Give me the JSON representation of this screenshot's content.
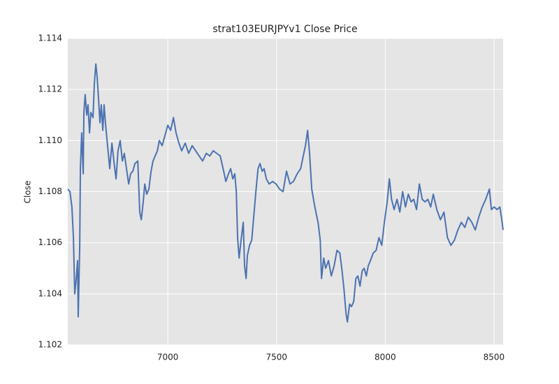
{
  "chart_data": {
    "type": "line",
    "title": "strat103EURJPYv1 Close Price",
    "y_label": "Close",
    "x": [
      6540,
      6550,
      6559,
      6566,
      6572,
      6579,
      6585,
      6588,
      6595,
      6598,
      6604,
      6611,
      6614,
      6620,
      6627,
      6633,
      6640,
      6646,
      6656,
      6662,
      6669,
      6675,
      6681,
      6688,
      6694,
      6701,
      6707,
      6714,
      6723,
      6733,
      6743,
      6752,
      6762,
      6771,
      6781,
      6791,
      6800,
      6810,
      6820,
      6829,
      6839,
      6849,
      6862,
      6871,
      6878,
      6887,
      6894,
      6903,
      6913,
      6923,
      6932,
      6942,
      6952,
      6961,
      6974,
      6987,
      7000,
      7013,
      7026,
      7038,
      7051,
      7064,
      7080,
      7096,
      7112,
      7128,
      7144,
      7160,
      7177,
      7193,
      7209,
      7225,
      7241,
      7257,
      7267,
      7279,
      7289,
      7299,
      7308,
      7315,
      7321,
      7328,
      7337,
      7347,
      7353,
      7360,
      7366,
      7376,
      7386,
      7395,
      7405,
      7415,
      7424,
      7434,
      7443,
      7453,
      7466,
      7482,
      7498,
      7514,
      7530,
      7546,
      7562,
      7578,
      7595,
      7611,
      7623,
      7633,
      7643,
      7652,
      7662,
      7672,
      7681,
      7691,
      7701,
      7707,
      7717,
      7726,
      7739,
      7752,
      7765,
      7778,
      7791,
      7800,
      7810,
      7820,
      7826,
      7836,
      7845,
      7855,
      7865,
      7874,
      7884,
      7894,
      7903,
      7913,
      7922,
      7932,
      7945,
      7958,
      7971,
      7984,
      7996,
      8009,
      8019,
      8029,
      8041,
      8054,
      8067,
      8080,
      8093,
      8106,
      8119,
      8131,
      8144,
      8157,
      8170,
      8183,
      8196,
      8209,
      8221,
      8237,
      8254,
      8270,
      8286,
      8302,
      8318,
      8334,
      8350,
      8366,
      8382,
      8398,
      8414,
      8430,
      8446,
      8462,
      8479,
      8488,
      8501,
      8514,
      8527,
      8536,
      8542
    ],
    "series": [
      {
        "name": "Close",
        "color": "#4c72b0",
        "values": [
          1.1081,
          1.108,
          1.1074,
          1.1062,
          1.104,
          1.1046,
          1.1053,
          1.1031,
          1.1059,
          1.1089,
          1.1103,
          1.1087,
          1.1111,
          1.1118,
          1.111,
          1.1114,
          1.1103,
          1.1111,
          1.1109,
          1.1122,
          1.113,
          1.1125,
          1.1117,
          1.1107,
          1.1114,
          1.1104,
          1.1114,
          1.1106,
          1.1098,
          1.1089,
          1.1099,
          1.1092,
          1.1085,
          1.1096,
          1.11,
          1.1092,
          1.1095,
          1.1089,
          1.1083,
          1.1087,
          1.1088,
          1.1091,
          1.1092,
          1.1072,
          1.1069,
          1.1076,
          1.1083,
          1.1079,
          1.1081,
          1.1088,
          1.1092,
          1.1094,
          1.1096,
          1.11,
          1.1098,
          1.1102,
          1.1106,
          1.1104,
          1.1109,
          1.1103,
          1.1099,
          1.1096,
          1.1099,
          1.1095,
          1.1098,
          1.1096,
          1.1094,
          1.1092,
          1.1095,
          1.1094,
          1.1096,
          1.1095,
          1.1094,
          1.1088,
          1.1084,
          1.1087,
          1.1089,
          1.1085,
          1.1087,
          1.108,
          1.1062,
          1.1054,
          1.1061,
          1.1068,
          1.1051,
          1.1046,
          1.1055,
          1.1059,
          1.1061,
          1.107,
          1.108,
          1.1089,
          1.1091,
          1.1088,
          1.1089,
          1.1085,
          1.1083,
          1.1084,
          1.1083,
          1.1081,
          1.108,
          1.1088,
          1.1083,
          1.1084,
          1.1087,
          1.1089,
          1.1094,
          1.1098,
          1.1104,
          1.1095,
          1.1081,
          1.1076,
          1.1072,
          1.1068,
          1.1061,
          1.1046,
          1.1054,
          1.105,
          1.1053,
          1.1047,
          1.1051,
          1.1057,
          1.1056,
          1.105,
          1.1042,
          1.1032,
          1.1029,
          1.1036,
          1.1035,
          1.1037,
          1.1046,
          1.1047,
          1.1043,
          1.1049,
          1.105,
          1.1047,
          1.1051,
          1.1053,
          1.1056,
          1.1057,
          1.1062,
          1.1059,
          1.1068,
          1.1076,
          1.1085,
          1.1077,
          1.1073,
          1.1077,
          1.1072,
          1.108,
          1.1074,
          1.1079,
          1.1076,
          1.1077,
          1.1073,
          1.1083,
          1.1077,
          1.1076,
          1.1077,
          1.1074,
          1.1079,
          1.1073,
          1.1069,
          1.1072,
          1.1062,
          1.1059,
          1.1061,
          1.1065,
          1.1068,
          1.1066,
          1.107,
          1.1068,
          1.1065,
          1.107,
          1.1074,
          1.1077,
          1.1081,
          1.1073,
          1.1074,
          1.1073,
          1.1074,
          1.1069,
          1.1065
        ]
      }
    ],
    "xlim": [
      6540,
      8542
    ],
    "ylim": [
      1.102,
      1.114
    ],
    "xticks": [
      7000,
      7500,
      8000,
      8500
    ],
    "yticks": [
      1.102,
      1.104,
      1.106,
      1.108,
      {
        "value": 1.11,
        "label": "1.110"
      },
      1.112,
      1.114
    ],
    "grid": true
  }
}
